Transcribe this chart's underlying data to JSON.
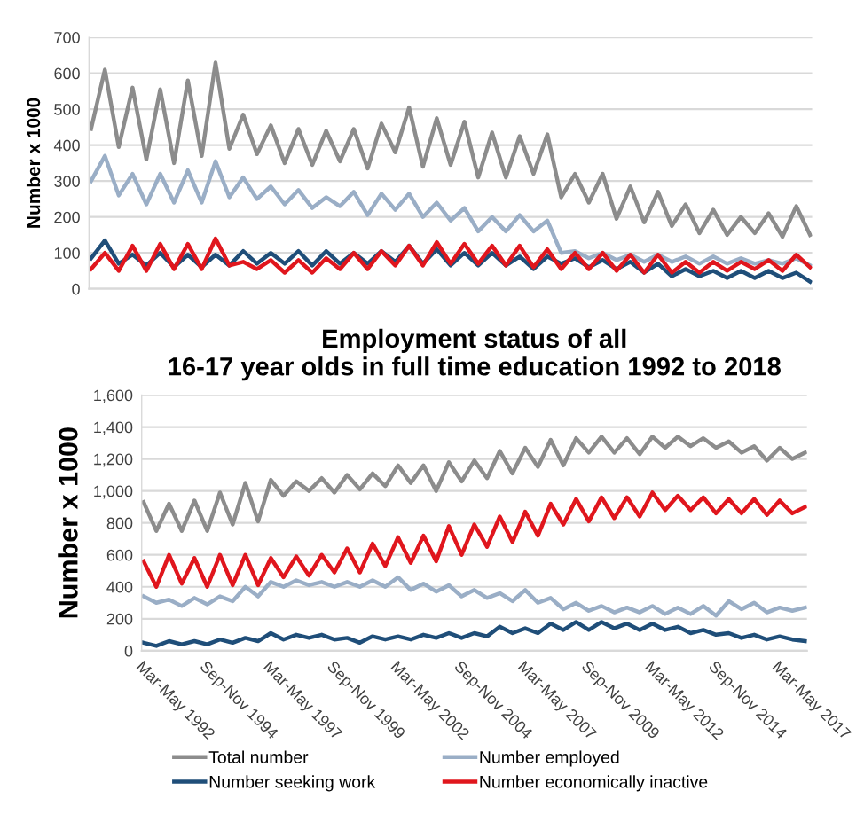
{
  "chart_data": [
    {
      "type": "line",
      "ylabel": "Number x 1000",
      "grid": "y",
      "tick_labels": "y",
      "ylim": [
        0,
        700
      ],
      "yticks": [
        0,
        100,
        200,
        300,
        400,
        500,
        600,
        700
      ],
      "categories": [
        null,
        null,
        null,
        null,
        null,
        null,
        null,
        null,
        null,
        null,
        null,
        null,
        null,
        null,
        null,
        null,
        null,
        null,
        null,
        null,
        null,
        null,
        null,
        null,
        null,
        null,
        null,
        null,
        null,
        null,
        null,
        null,
        null,
        null,
        null,
        null,
        null,
        null,
        null,
        null,
        null,
        null,
        null,
        null,
        null,
        null,
        null,
        null,
        null,
        null,
        null,
        null,
        null
      ],
      "series": [
        {
          "color": "#8c8c8c",
          "values": [
            445,
            610,
            395,
            560,
            360,
            555,
            350,
            580,
            370,
            630,
            390,
            485,
            375,
            455,
            350,
            445,
            345,
            440,
            355,
            445,
            335,
            460,
            380,
            505,
            340,
            475,
            345,
            465,
            310,
            435,
            310,
            425,
            320,
            430,
            255,
            320,
            240,
            320,
            195,
            285,
            185,
            270,
            175,
            235,
            155,
            220,
            150,
            200,
            155,
            210,
            145,
            230,
            150
          ]
        },
        {
          "color": "#9aaec6",
          "values": [
            300,
            370,
            260,
            320,
            235,
            320,
            240,
            330,
            240,
            355,
            255,
            310,
            250,
            285,
            235,
            275,
            225,
            255,
            230,
            270,
            205,
            265,
            220,
            265,
            200,
            240,
            190,
            225,
            160,
            200,
            160,
            205,
            160,
            190,
            100,
            105,
            85,
            100,
            80,
            95,
            75,
            95,
            75,
            90,
            70,
            90,
            70,
            85,
            70,
            80,
            70,
            85,
            65
          ]
        },
        {
          "color": "#1f4e79",
          "values": [
            85,
            135,
            70,
            95,
            65,
            100,
            60,
            95,
            60,
            95,
            65,
            105,
            70,
            100,
            70,
            105,
            65,
            105,
            70,
            100,
            70,
            105,
            75,
            120,
            70,
            110,
            65,
            100,
            65,
            100,
            65,
            90,
            55,
            90,
            70,
            85,
            60,
            80,
            55,
            75,
            45,
            70,
            35,
            55,
            35,
            50,
            30,
            50,
            30,
            50,
            30,
            45,
            20
          ]
        },
        {
          "color": "#e0161d",
          "values": [
            55,
            100,
            50,
            120,
            50,
            125,
            55,
            125,
            55,
            140,
            65,
            75,
            55,
            80,
            45,
            80,
            45,
            85,
            55,
            100,
            55,
            105,
            65,
            120,
            65,
            130,
            70,
            125,
            70,
            120,
            65,
            120,
            60,
            110,
            55,
            100,
            55,
            100,
            50,
            95,
            45,
            95,
            45,
            75,
            45,
            75,
            50,
            75,
            55,
            80,
            50,
            95,
            60
          ]
        }
      ]
    },
    {
      "type": "line",
      "title": "Employment status of all\n16-17 year olds in full time education 1992 to 2018",
      "ylabel": "Number x 1000",
      "grid": "y",
      "legend": "bottom",
      "ylim": [
        0,
        1600
      ],
      "yticks": [
        0,
        {
          "value": 200,
          "label": "200"
        },
        400,
        600,
        800,
        {
          "value": 1000,
          "label": "1,000"
        },
        {
          "value": 1200,
          "label": "1,200"
        },
        {
          "value": 1400,
          "label": "1,400"
        },
        {
          "value": 1600,
          "label": "1,600"
        }
      ],
      "categories": [
        "Mar-May 1992",
        null,
        null,
        null,
        null,
        "Sep-Nov 1994",
        null,
        null,
        null,
        null,
        "Mar-May 1997",
        null,
        null,
        null,
        null,
        "Sep-Nov 1999",
        null,
        null,
        null,
        null,
        "Mar-May 2002",
        null,
        null,
        null,
        null,
        "Sep-Nov 2004",
        null,
        null,
        null,
        null,
        "Mar-May 2007",
        null,
        null,
        null,
        null,
        "Sep-Nov 2009",
        null,
        null,
        null,
        null,
        "Mar-May 2012",
        null,
        null,
        null,
        null,
        "Sep-Nov 2014",
        null,
        null,
        null,
        null,
        "Mar-May 2017",
        null,
        null
      ],
      "series": [
        {
          "name": "Total number",
          "color": "#8c8c8c",
          "values": [
            930,
            750,
            920,
            750,
            940,
            750,
            990,
            790,
            1050,
            810,
            1070,
            970,
            1060,
            1000,
            1080,
            990,
            1100,
            1010,
            1110,
            1030,
            1160,
            1050,
            1160,
            1000,
            1180,
            1060,
            1190,
            1080,
            1250,
            1110,
            1270,
            1150,
            1320,
            1160,
            1330,
            1240,
            1340,
            1240,
            1330,
            1230,
            1340,
            1270,
            1340,
            1280,
            1330,
            1270,
            1310,
            1240,
            1280,
            1190,
            1270,
            1200,
            1240
          ]
        },
        {
          "name": "Number employed",
          "color": "#9aaec6",
          "values": [
            340,
            300,
            320,
            280,
            330,
            290,
            340,
            310,
            400,
            340,
            430,
            400,
            440,
            410,
            430,
            400,
            430,
            400,
            440,
            400,
            460,
            380,
            420,
            370,
            410,
            340,
            380,
            330,
            360,
            310,
            380,
            300,
            330,
            260,
            300,
            250,
            280,
            240,
            270,
            240,
            280,
            230,
            270,
            230,
            280,
            220,
            310,
            260,
            300,
            240,
            270,
            250,
            270
          ]
        },
        {
          "name": "Number seeking work",
          "color": "#1f4e79",
          "values": [
            50,
            30,
            60,
            40,
            60,
            40,
            70,
            50,
            80,
            60,
            110,
            70,
            100,
            80,
            100,
            70,
            80,
            50,
            90,
            70,
            90,
            70,
            100,
            80,
            110,
            80,
            110,
            90,
            150,
            110,
            140,
            110,
            170,
            130,
            180,
            130,
            180,
            140,
            170,
            130,
            170,
            130,
            150,
            110,
            130,
            100,
            110,
            80,
            100,
            70,
            90,
            70,
            60
          ]
        },
        {
          "name": "Number economically inactive",
          "color": "#e0161d",
          "values": [
            560,
            400,
            600,
            420,
            580,
            400,
            600,
            410,
            600,
            410,
            580,
            460,
            590,
            470,
            600,
            490,
            640,
            490,
            670,
            530,
            710,
            550,
            720,
            560,
            780,
            600,
            790,
            650,
            840,
            680,
            870,
            720,
            920,
            790,
            950,
            810,
            960,
            830,
            960,
            840,
            990,
            880,
            970,
            880,
            960,
            860,
            950,
            860,
            950,
            850,
            940,
            860,
            900
          ]
        }
      ]
    }
  ]
}
